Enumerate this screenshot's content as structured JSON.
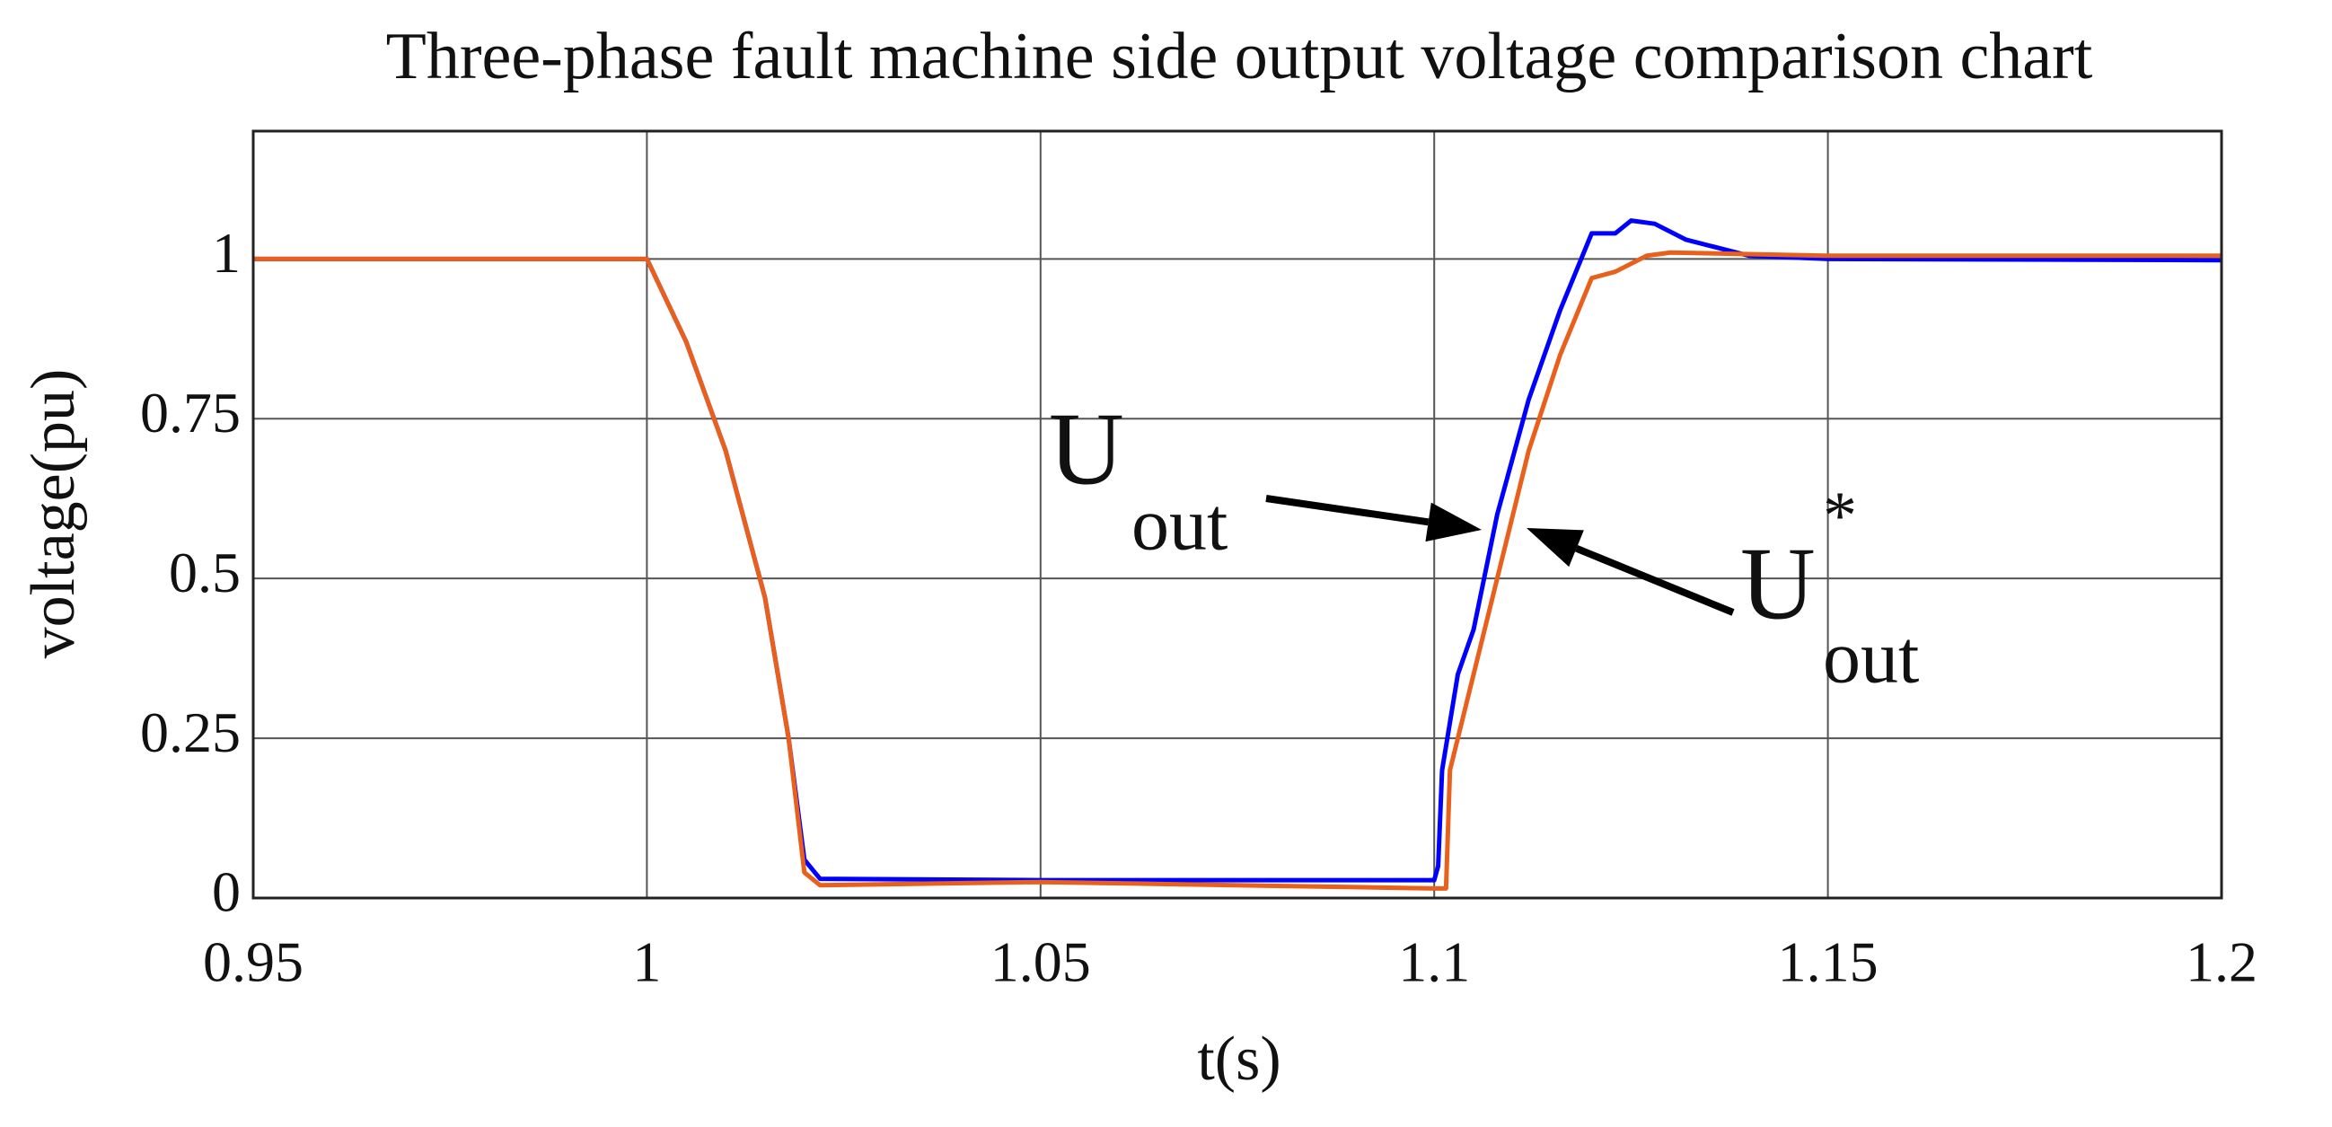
{
  "chart_data": {
    "type": "line",
    "title": "Three-phase fault machine side output voltage comparison chart",
    "xlabel": "t(s)",
    "ylabel": "voltage(pu)",
    "xlim": [
      0.95,
      1.2
    ],
    "ylim": [
      0,
      1.2
    ],
    "xticks": [
      0.95,
      1,
      1.05,
      1.1,
      1.15,
      1.2
    ],
    "yticks": [
      0,
      0.25,
      0.5,
      0.75,
      1
    ],
    "grid": true,
    "series": [
      {
        "color": "#0000ff",
        "x": [
          0.95,
          1.0,
          1.005,
          1.01,
          1.015,
          1.018,
          1.02,
          1.022,
          1.05,
          1.1,
          1.1005,
          1.101,
          1.103,
          1.105,
          1.108,
          1.112,
          1.116,
          1.12,
          1.123,
          1.125,
          1.128,
          1.132,
          1.14,
          1.15,
          1.2
        ],
        "values": [
          1,
          1,
          0.87,
          0.7,
          0.47,
          0.25,
          0.06,
          0.03,
          0.028,
          0.028,
          0.05,
          0.2,
          0.35,
          0.42,
          0.6,
          0.78,
          0.92,
          1.04,
          1.04,
          1.06,
          1.055,
          1.03,
          1.005,
          1.0,
          0.998
        ]
      },
      {
        "color": "#e8601c",
        "x": [
          0.95,
          1.0,
          1.005,
          1.01,
          1.015,
          1.018,
          1.02,
          1.022,
          1.05,
          1.1,
          1.1015,
          1.102,
          1.105,
          1.108,
          1.112,
          1.116,
          1.12,
          1.123,
          1.127,
          1.13,
          1.15,
          1.2
        ],
        "values": [
          1,
          1,
          0.87,
          0.7,
          0.47,
          0.25,
          0.04,
          0.02,
          0.025,
          0.015,
          0.015,
          0.2,
          0.35,
          0.5,
          0.7,
          0.85,
          0.97,
          0.98,
          1.005,
          1.01,
          1.005,
          1.005
        ]
      }
    ],
    "annotations": [
      {
        "text": "U",
        "sub": "out"
      },
      {
        "text": "U",
        "sub": "out",
        "sup": "*"
      }
    ]
  }
}
